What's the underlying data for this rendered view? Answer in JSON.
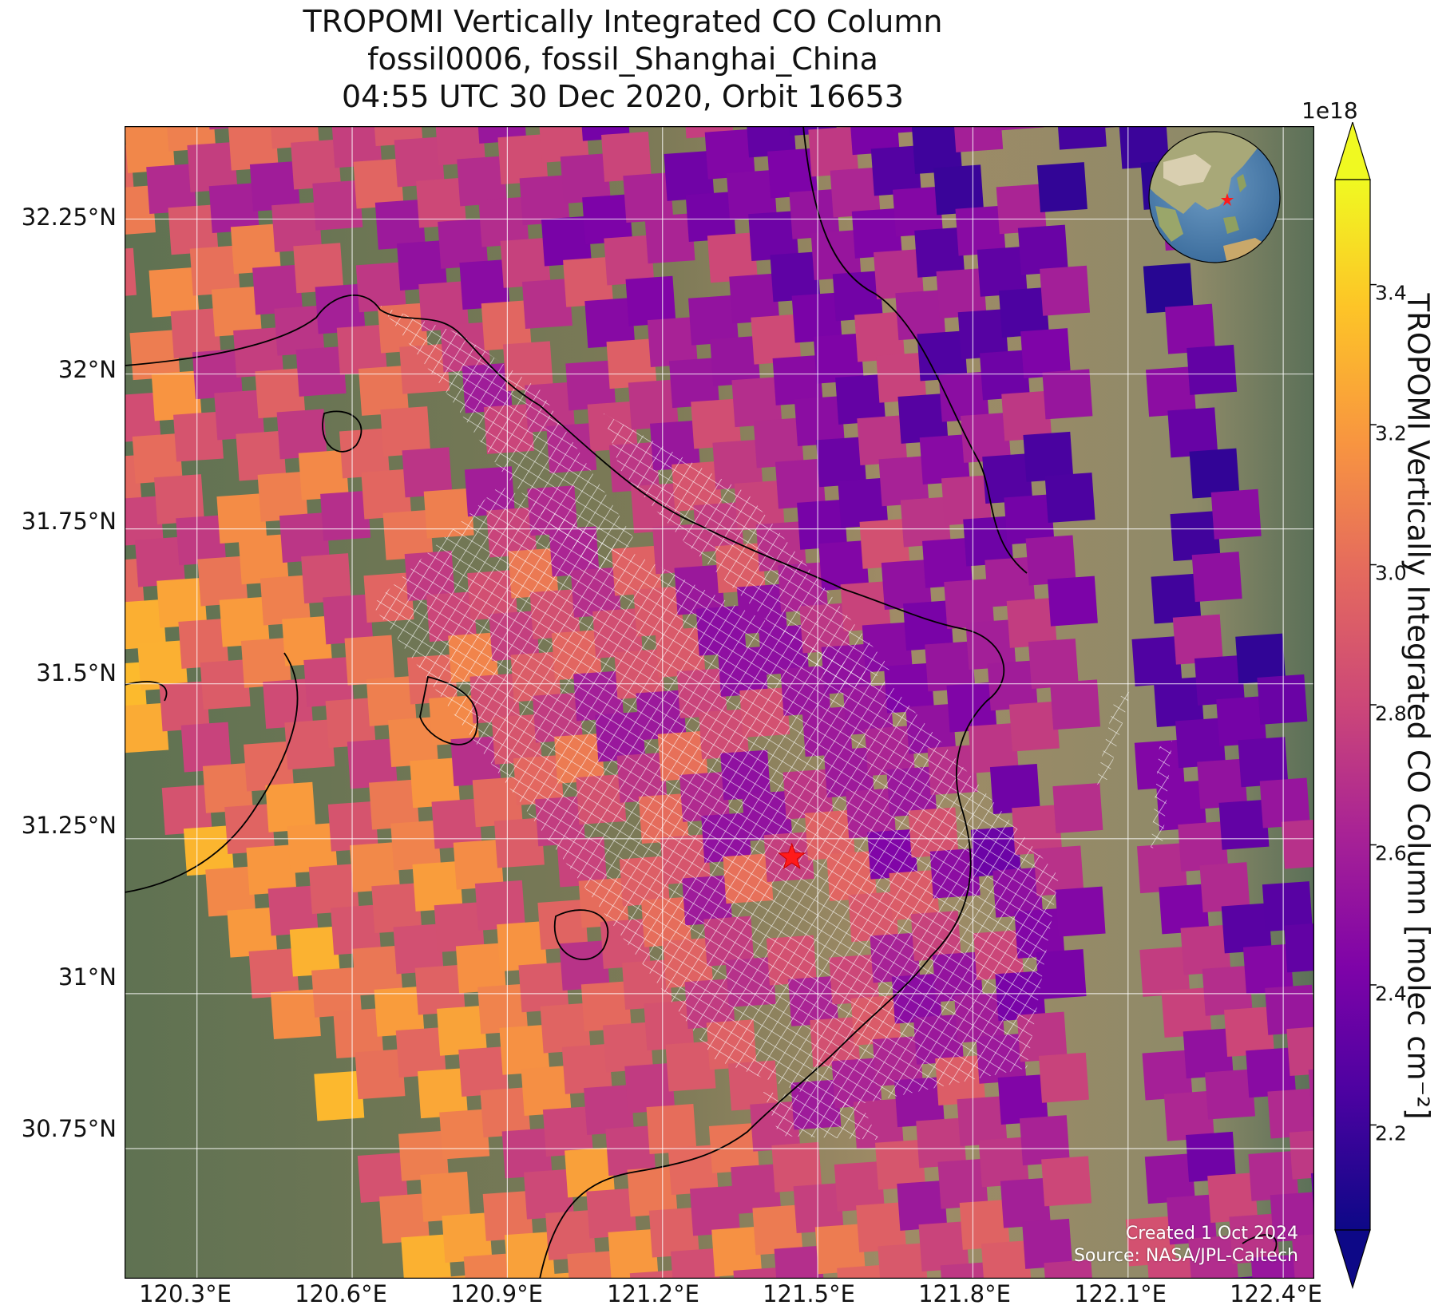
{
  "title": {
    "line1": "TROPOMI Vertically Integrated CO Column",
    "line2": "fossil0006, fossil_Shanghai_China",
    "line3": "04:55 UTC 30 Dec 2020, Orbit 16653"
  },
  "map": {
    "lat_range": [
      30.54,
      32.4
    ],
    "lon_range": [
      120.16,
      122.46
    ],
    "lat_ticks": [
      "32.25°N",
      "32°N",
      "31.75°N",
      "31.5°N",
      "31.25°N",
      "31°N",
      "30.75°N"
    ],
    "lon_ticks": [
      "120.3°E",
      "120.6°E",
      "120.9°E",
      "121.2°E",
      "121.5°E",
      "121.8°E",
      "122.1°E",
      "122.4°E"
    ],
    "grid": true,
    "target_marker": {
      "lon": 121.45,
      "lat": 31.22,
      "symbol": "red-star"
    },
    "credit_line1": "Created 1 Oct 2024",
    "credit_line2": "Source: NASA/JPL-Caltech"
  },
  "colorbar": {
    "exponent_label": "1e18",
    "label": "TROPOMI Vertically Integrated CO Column [molec cm⁻²]",
    "ticks": [
      "2.2",
      "2.4",
      "2.6",
      "2.8",
      "3.0",
      "3.2",
      "3.4"
    ],
    "range": [
      2.05,
      3.55
    ],
    "colormap": "plasma",
    "extend": "both"
  },
  "colors": {
    "land_background": "#6e7a55",
    "water_background": "#9c8a66",
    "gridline": "#ffffff",
    "star": "#ff1a1a",
    "target_overlay": "#ffffff"
  },
  "inset": {
    "type": "globe",
    "marker": "red-star",
    "region": "East Asia"
  }
}
